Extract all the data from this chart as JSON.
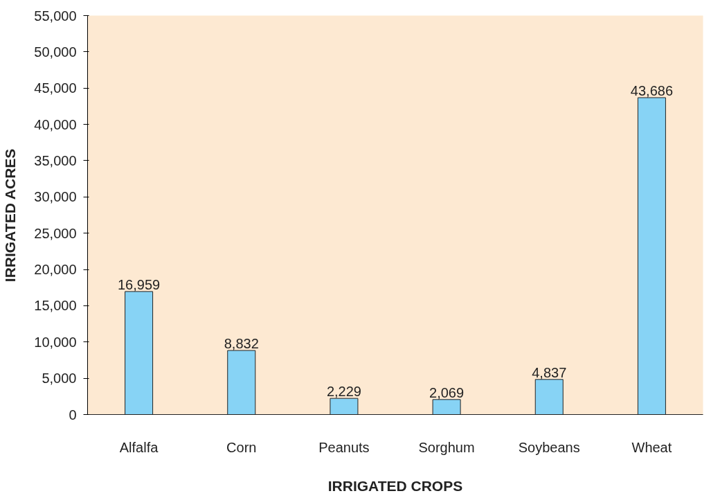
{
  "chart_data": {
    "type": "bar",
    "xlabel": "IRRIGATED CROPS",
    "ylabel": "IRRIGATED ACRES",
    "categories": [
      "Alfalfa",
      "Corn",
      "Peanuts",
      "Sorghum",
      "Soybeans",
      "Wheat"
    ],
    "values": [
      16959,
      8832,
      2229,
      2069,
      4837,
      43686
    ],
    "value_labels": [
      "16,959",
      "8,832",
      "2,229",
      "2,069",
      "4,837",
      "43,686"
    ],
    "color": "#87d3f5",
    "ylim": [
      0,
      55000
    ],
    "yticks": [
      0,
      {
        "value": 5000,
        "label": "5,000"
      },
      {
        "value": 10000,
        "label": "10,000"
      },
      {
        "value": 15000,
        "label": "15,000"
      },
      {
        "value": 20000,
        "label": "20,000"
      },
      {
        "value": 25000,
        "label": "25,000"
      },
      {
        "value": 30000,
        "label": "30,000"
      },
      {
        "value": 35000,
        "label": "35,000"
      },
      {
        "value": 40000,
        "label": "40,000"
      },
      {
        "value": 45000,
        "label": "45,000"
      },
      {
        "value": 50000,
        "label": "50,000"
      },
      {
        "value": 55000,
        "label": "55,000"
      }
    ]
  }
}
